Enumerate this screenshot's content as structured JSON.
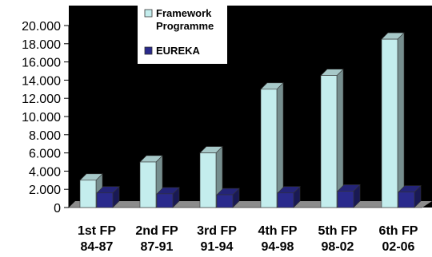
{
  "chart_data": {
    "type": "bar",
    "title": "",
    "xlabel": "",
    "ylabel": "",
    "ylim": [
      0,
      20000
    ],
    "yticks": [
      "0",
      "2.000",
      "4.000",
      "6.000",
      "8.000",
      "10.000",
      "12.000",
      "14.000",
      "16.000",
      "18.000",
      "20.000"
    ],
    "categories": [
      [
        "1st FP",
        "84-87"
      ],
      [
        "2nd FP",
        "87-91"
      ],
      [
        "3rd FP",
        "91-94"
      ],
      [
        "4th FP",
        "94-98"
      ],
      [
        "5th FP",
        "98-02"
      ],
      [
        "6th FP",
        "02-06"
      ]
    ],
    "series": [
      {
        "name": "Framework Programme",
        "legend_lines": [
          "Framework",
          "Programme"
        ],
        "color": "#c4eded",
        "values": [
          3000,
          5000,
          6000,
          13000,
          14500,
          18500
        ]
      },
      {
        "name": "EUREKA",
        "legend_lines": [
          "EUREKA"
        ],
        "color": "#2a2a8c",
        "values": [
          1600,
          1500,
          1400,
          1600,
          1800,
          1700
        ]
      }
    ],
    "grid": false,
    "legend_position": "top-left",
    "background_color": "#000000",
    "floor_color": "#8c8c8c"
  }
}
